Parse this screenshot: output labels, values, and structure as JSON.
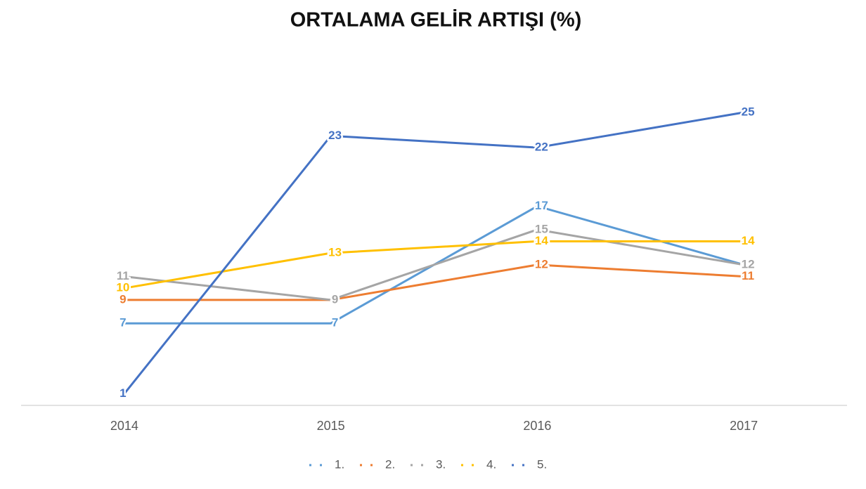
{
  "chart_data": {
    "type": "line",
    "title": "ORTALAMA GELİR ARTIŞI (%)",
    "categories": [
      "2014",
      "2015",
      "2016",
      "2017"
    ],
    "series": [
      {
        "name": "1.",
        "color": "#5b9bd5",
        "values": [
          7,
          7,
          17,
          12
        ]
      },
      {
        "name": "2.",
        "color": "#ed7d31",
        "values": [
          9,
          9,
          12,
          11
        ]
      },
      {
        "name": "3.",
        "color": "#a5a5a5",
        "values": [
          11,
          9,
          15,
          12
        ]
      },
      {
        "name": "4.",
        "color": "#ffc000",
        "values": [
          10,
          13,
          14,
          14
        ]
      },
      {
        "name": "5.",
        "color": "#4472c4",
        "values": [
          1,
          23,
          22,
          25
        ]
      }
    ],
    "legend": "bottom"
  }
}
